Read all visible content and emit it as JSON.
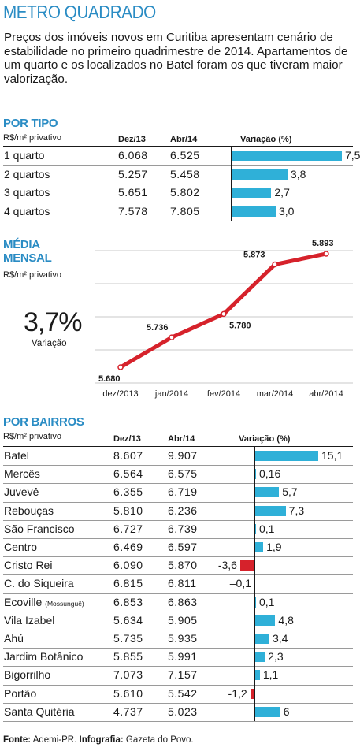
{
  "title": "METRO QUADRADO",
  "intro": "Preços dos imóveis novos em Curitiba apresentam cenário de estabilidade no primeiro quadrimestre de 2014. Apartamentos de um quarto e os localizados no Batel foram os que tiveram maior valorização.",
  "colors": {
    "accent": "#2a8cc4",
    "bar_positive": "#2fb0d8",
    "bar_negative": "#d6222b",
    "line": "#d6222b"
  },
  "por_tipo": {
    "title": "POR TIPO",
    "unit": "R$/m² privativo",
    "headers": {
      "dez": "Dez/13",
      "abr": "Abr/14",
      "var": "Variação (%)"
    }
  },
  "media_mensal": {
    "title_line1": "MÉDIA",
    "title_line2": "MENSAL",
    "unit": "R$/m² privativo",
    "highlight_value": "3,7%",
    "highlight_label": "Variação"
  },
  "por_bairros": {
    "title": "POR BAIRROS",
    "unit": "R$/m² privativo",
    "headers": {
      "dez": "Dez/13",
      "abr": "Abr/14",
      "var": "Variação (%)"
    }
  },
  "footer": {
    "fonte_label": "Fonte:",
    "fonte_value": " Ademi-PR. ",
    "info_label": "Infografia:",
    "info_value": " Gazeta do Povo."
  },
  "chart_data": [
    {
      "type": "bar",
      "title": "POR TIPO",
      "categories": [
        "1 quarto",
        "2 quartos",
        "3 quartos",
        "4 quartos"
      ],
      "dez13": [
        "6.068",
        "5.257",
        "5.651",
        "7.578"
      ],
      "abr14": [
        "6.525",
        "5.458",
        "5.802",
        "7.805"
      ],
      "values": [
        7.5,
        3.8,
        2.7,
        3.0
      ],
      "value_labels": [
        "7,5",
        "3,8",
        "2,7",
        "3,0"
      ]
    },
    {
      "type": "line",
      "title": "MÉDIA MENSAL",
      "x": [
        "dez/2013",
        "jan/2014",
        "fev/2014",
        "mar/2014",
        "abr/2014"
      ],
      "values": [
        5680,
        5736,
        5780,
        5873,
        5893
      ],
      "value_labels": [
        "5.680",
        "5.736",
        "5.780",
        "5.873",
        "5.893"
      ],
      "grid": true
    },
    {
      "type": "bar",
      "title": "POR BAIRROS",
      "categories": [
        "Batel",
        "Mercês",
        "Juvevê",
        "Rebouças",
        "São Francisco",
        "Centro",
        "Cristo Rei",
        "C. do Siqueira",
        "Ecoville",
        "Vila Izabel",
        "Ahú",
        "Jardim Botânico",
        "Bigorrilho",
        "Portão",
        "Santa Quitéria"
      ],
      "category_notes": [
        "",
        "",
        "",
        "",
        "",
        "",
        "",
        "",
        "(Mossunguê)",
        "",
        "",
        "",
        "",
        "",
        ""
      ],
      "dez13": [
        "8.607",
        "6.564",
        "6.355",
        "5.810",
        "6.727",
        "6.469",
        "6.090",
        "6.815",
        "6.853",
        "5.634",
        "5.735",
        "5.855",
        "7.073",
        "5.610",
        "4.737"
      ],
      "abr14": [
        "9.907",
        "6.575",
        "6.719",
        "6.236",
        "6.739",
        "6.597",
        "5.870",
        "6.811",
        "6.863",
        "5.905",
        "5.935",
        "5.991",
        "7.157",
        "5.542",
        "5.023"
      ],
      "values": [
        15.1,
        0.16,
        5.7,
        7.3,
        0.1,
        1.9,
        -3.6,
        -0.1,
        0.1,
        4.8,
        3.4,
        2.3,
        1.1,
        -1.2,
        6
      ],
      "value_labels": [
        "15,1",
        "0,16",
        "5,7",
        "7,3",
        "0,1",
        "1,9",
        "-3,6",
        "–0,1",
        "0,1",
        "4,8",
        "3,4",
        "2,3",
        "1,1",
        "-1,2",
        "6"
      ]
    }
  ]
}
